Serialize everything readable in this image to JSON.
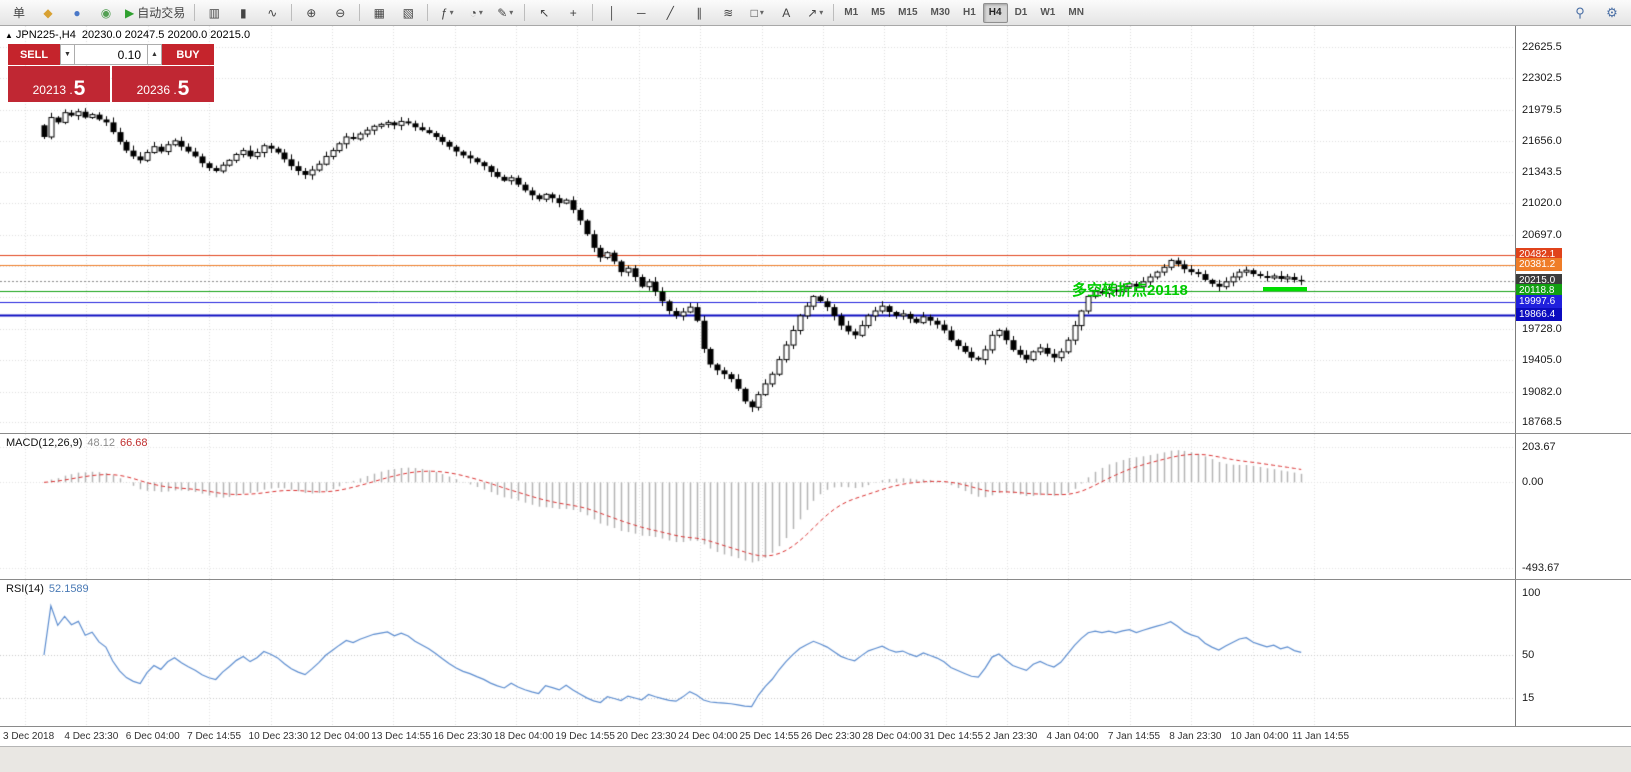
{
  "toolbar": {
    "timeframes": [
      "M1",
      "M5",
      "M15",
      "M30",
      "H1",
      "H4",
      "D1",
      "W1",
      "MN"
    ],
    "active_timeframe": "H4",
    "groups": [
      {
        "buttons": [
          {
            "name": "order-menu-button",
            "glyph": "单"
          },
          {
            "name": "new-order-icon",
            "glyph": "◆",
            "color": "#d8a132"
          },
          {
            "name": "market-watch-icon",
            "glyph": "●",
            "color": "#4a78c8"
          },
          {
            "name": "navigator-icon",
            "glyph": "◉",
            "color": "#54a054"
          },
          {
            "name": "auto-trading-button",
            "glyph": "▶",
            "color": "#2fa02f",
            "label": "自动交易"
          }
        ]
      },
      {
        "buttons": [
          {
            "name": "bar-chart-icon",
            "glyph": "▥"
          },
          {
            "name": "candlestick-chart-icon",
            "glyph": "▮"
          },
          {
            "name": "line-chart-icon",
            "glyph": "∿"
          }
        ]
      },
      {
        "buttons": [
          {
            "name": "zoom-in-icon",
            "glyph": "⊕"
          },
          {
            "name": "zoom-out-icon",
            "glyph": "⊖"
          }
        ]
      },
      {
        "buttons": [
          {
            "name": "tile-windows-icon",
            "glyph": "▦"
          },
          {
            "name": "auto-arrange-icon",
            "glyph": "▧"
          }
        ]
      },
      {
        "buttons": [
          {
            "name": "indicators-icon",
            "glyph": "ƒ",
            "caret": true
          },
          {
            "name": "periods-menu-icon",
            "glyph": "◔",
            "caret": true
          },
          {
            "name": "templates-icon",
            "glyph": "✎",
            "caret": true
          }
        ]
      },
      {
        "buttons": [
          {
            "name": "cursor-icon",
            "glyph": "↖"
          },
          {
            "name": "crosshair-icon",
            "glyph": "+"
          }
        ]
      },
      {
        "buttons": [
          {
            "name": "vertical-line-icon",
            "glyph": "│"
          },
          {
            "name": "horizontal-line-icon",
            "glyph": "─"
          },
          {
            "name": "trendline-icon",
            "glyph": "╱"
          },
          {
            "name": "channel-icon",
            "glyph": "∥"
          },
          {
            "name": "fibonacci-icon",
            "glyph": "≋"
          },
          {
            "name": "shapes-icon",
            "glyph": "□",
            "caret": true
          },
          {
            "name": "text-icon",
            "glyph": "A"
          },
          {
            "name": "arrows-icon",
            "glyph": "↗",
            "caret": true
          }
        ]
      }
    ],
    "right_buttons": [
      {
        "name": "search-icon",
        "glyph": "⚲"
      },
      {
        "name": "settings-icon",
        "glyph": "⚙"
      }
    ]
  },
  "header": {
    "marker": "▲",
    "symbol": "JPN225-,H4",
    "ohlc": "20230.0 20247.5 20200.0 20215.0"
  },
  "trade_panel": {
    "sell_label": "SELL",
    "buy_label": "BUY",
    "volume": "0.10",
    "spin_down": "▼",
    "spin_up": "▲",
    "sell_price_main": "20213 .",
    "sell_price_pip": "5",
    "buy_price_main": "20236 .",
    "buy_price_pip": "5"
  },
  "main_chart": {
    "price_axis": [
      "22625.5",
      "22302.5",
      "21979.5",
      "21656.0",
      "21343.5",
      "21020.0",
      "20697.0",
      "20374.0",
      "20051.0",
      "19728.0",
      "19405.0",
      "19082.0",
      "18768.5"
    ],
    "levels": [
      {
        "price": 20482.1,
        "label": "20482.1",
        "line_color": "#e0431b",
        "tag_color": "#e0431b",
        "style": "solid",
        "width": 1
      },
      {
        "price": 20381.2,
        "label": "20381.2",
        "line_color": "#ef7d28",
        "tag_color": "#ef7d28",
        "style": "solid",
        "width": 1
      },
      {
        "price": 20215.0,
        "label": "20215.0",
        "line_color": "#8a8a8a",
        "tag_color": "#3c3c3c",
        "style": "dotted",
        "width": 1
      },
      {
        "price": 20118.8,
        "label": "20118.8",
        "line_color": "#11a011",
        "tag_color": "#11a011",
        "style": "solid",
        "width": 1
      },
      {
        "price": 19997.6,
        "label": "19997.6",
        "line_color": "#2020dd",
        "tag_color": "#2020dd",
        "style": "solid",
        "width": 1
      },
      {
        "price": 19866.4,
        "label": "19866.4",
        "line_color": "#0b0bc0",
        "tag_color": "#0b0bc0",
        "style": "solid",
        "width": 2
      }
    ],
    "annotation": {
      "text": "多空转折点20118",
      "color": "#00cc00",
      "segment_color": "#00dd00"
    }
  },
  "chart_data": {
    "type": "candlestick",
    "symbol": "JPN225",
    "timeframe": "H4",
    "ylim": [
      18768.5,
      22625.5
    ],
    "closes": [
      21700,
      21900,
      21850,
      21950,
      21920,
      21960,
      21900,
      21930,
      21880,
      21850,
      21750,
      21650,
      21560,
      21500,
      21460,
      21540,
      21600,
      21550,
      21620,
      21660,
      21600,
      21550,
      21500,
      21430,
      21380,
      21350,
      21410,
      21460,
      21520,
      21560,
      21500,
      21540,
      21610,
      21580,
      21540,
      21470,
      21400,
      21350,
      21310,
      21360,
      21420,
      21500,
      21560,
      21630,
      21700,
      21680,
      21730,
      21770,
      21810,
      21830,
      21850,
      21820,
      21860,
      21840,
      21800,
      21770,
      21740,
      21700,
      21650,
      21600,
      21550,
      21510,
      21480,
      21440,
      21400,
      21340,
      21290,
      21250,
      21280,
      21210,
      21150,
      21100,
      21060,
      21110,
      21070,
      21020,
      21050,
      20950,
      20840,
      20700,
      20560,
      20460,
      20510,
      20420,
      20310,
      20350,
      20260,
      20160,
      20210,
      20110,
      20010,
      19910,
      19860,
      19900,
      19950,
      19810,
      19520,
      19360,
      19300,
      19260,
      19210,
      19110,
      18980,
      18920,
      19050,
      19160,
      19260,
      19410,
      19560,
      19710,
      19860,
      19960,
      20060,
      20010,
      19950,
      19860,
      19760,
      19700,
      19660,
      19760,
      19860,
      19910,
      19960,
      19900,
      19860,
      19880,
      19830,
      19790,
      19850,
      19810,
      19770,
      19710,
      19610,
      19550,
      19490,
      19430,
      19410,
      19510,
      19660,
      19710,
      19610,
      19510,
      19460,
      19410,
      19490,
      19530,
      19470,
      19430,
      19490,
      19610,
      19760,
      19910,
      20060,
      20110,
      20090,
      20130,
      20110,
      20160,
      20190,
      20160,
      20210,
      20260,
      20310,
      20360,
      20430,
      20390,
      20340,
      20310,
      20290,
      20230,
      20190,
      20160,
      20210,
      20260,
      20310,
      20330,
      20290,
      20270,
      20250,
      20270,
      20240,
      20260,
      20230,
      20215
    ]
  },
  "macd": {
    "name": "MACD(12,26,9)",
    "value_main": "48.12",
    "value_signal": "66.68",
    "axis": [
      "203.67",
      "0.00",
      "-493.67"
    ],
    "histogram_color": "#b4b4b4",
    "signal_color": "#d93030"
  },
  "rsi": {
    "name": "RSI(14)",
    "value": "52.1589",
    "axis": [
      "100",
      "50",
      "15"
    ],
    "line_color": "#5b8ccf"
  },
  "time_axis": [
    "3 Dec 2018",
    "4 Dec 23:30",
    "6 Dec 04:00",
    "7 Dec 14:55",
    "10 Dec 23:30",
    "12 Dec 04:00",
    "13 Dec 14:55",
    "16 Dec 23:30",
    "18 Dec 04:00",
    "19 Dec 14:55",
    "20 Dec 23:30",
    "24 Dec 04:00",
    "25 Dec 14:55",
    "26 Dec 23:30",
    "28 Dec 04:00",
    "31 Dec 14:55",
    "2 Jan 23:30",
    "4 Jan 04:00",
    "7 Jan 14:55",
    "8 Jan 23:30",
    "10 Jan 04:00",
    "11 Jan 14:55"
  ]
}
